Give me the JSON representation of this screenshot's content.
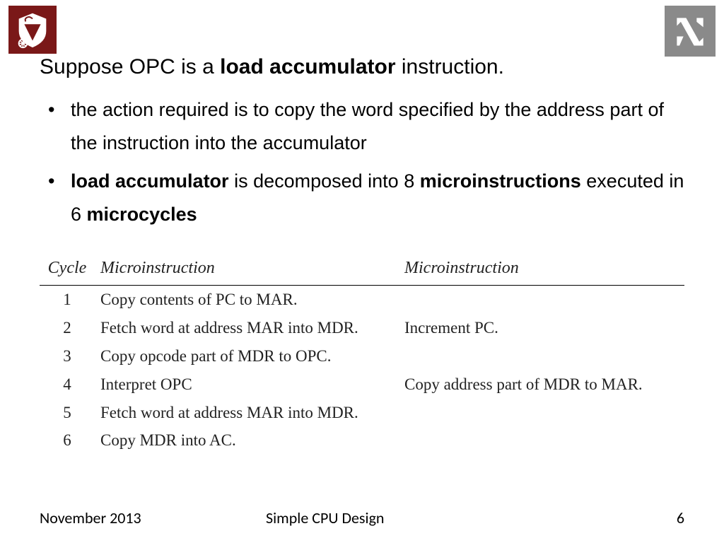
{
  "title": {
    "pre": "Suppose OPC is a ",
    "bold": "load accumulator",
    "post": " instruction."
  },
  "bullets": [
    {
      "plain": "the action required is to copy the word specified by the address part of the instruction into the accumulator"
    },
    {
      "seg1_bold": "load accumulator",
      "seg2": " is decomposed into 8 ",
      "seg3_bold": "microinstructions",
      "seg4": " executed in 6 ",
      "seg5_bold": "microcycles"
    }
  ],
  "table": {
    "headers": {
      "cycle": "Cycle",
      "mi1": "Microinstruction",
      "mi2": "Microinstruction"
    },
    "rows": [
      {
        "cycle": "1",
        "mi1": "Copy contents of PC to MAR.",
        "mi2": ""
      },
      {
        "cycle": "2",
        "mi1": "Fetch word at address MAR into MDR.",
        "mi2": "Increment PC."
      },
      {
        "cycle": "3",
        "mi1": "Copy opcode part of MDR to OPC.",
        "mi2": ""
      },
      {
        "cycle": "4",
        "mi1": "Interpret OPC",
        "mi2": "Copy address part of MDR to MAR."
      },
      {
        "cycle": "5",
        "mi1": "Fetch word at address MAR into MDR.",
        "mi2": ""
      },
      {
        "cycle": "6",
        "mi1": "Copy MDR into AC.",
        "mi2": ""
      }
    ]
  },
  "footer": {
    "date": "November 2013",
    "title": "Simple CPU Design",
    "page": "6"
  },
  "colors": {
    "logo_left_bg": "#7a1818",
    "logo_right_bg": "#8a8a8a",
    "text": "#000000",
    "table_text": "#222222",
    "rule": "#000000"
  }
}
